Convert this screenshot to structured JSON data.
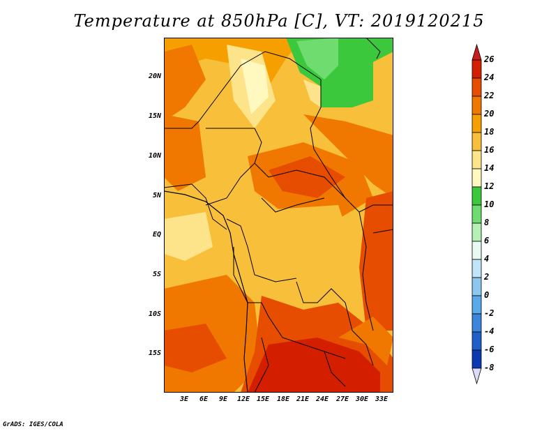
{
  "title": "Temperature at 850hPa [C], VT: 2019120215",
  "credit": "GrADS: IGES/COLA",
  "latitude_labels": [
    "20N",
    "15N",
    "10N",
    "5N",
    "EQ",
    "5S",
    "10S",
    "15S"
  ],
  "longitude_labels": [
    "3E",
    "6E",
    "9E",
    "12E",
    "15E",
    "18E",
    "21E",
    "24E",
    "27E",
    "30E",
    "33E"
  ],
  "colorbar": {
    "labels": [
      "26",
      "24",
      "22",
      "20",
      "18",
      "16",
      "14",
      "12",
      "10",
      "8",
      "6",
      "4",
      "2",
      "0",
      "-2",
      "-4",
      "-6",
      "-8"
    ],
    "colors": [
      "#d41e00",
      "#e64d00",
      "#f07800",
      "#f5a000",
      "#f8bf3a",
      "#fde48a",
      "#fff9c0",
      "#3cc83c",
      "#6fdc6f",
      "#b5f0b5",
      "#e8fbf2",
      "#c0e4f8",
      "#8cc7f0",
      "#5aa9e8",
      "#3b86dc",
      "#1f5fc8",
      "#0a3ab0",
      "#08087a"
    ],
    "over_color": "#c81e1e",
    "under_color": "#dcdcf8"
  }
}
